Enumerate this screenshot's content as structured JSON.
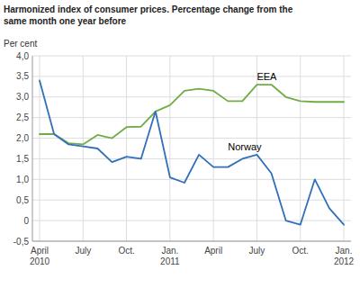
{
  "chart_data": {
    "type": "line",
    "title": "Harmonized index of consumer prices. Percentage change from the\nsame month one year before",
    "ylabel": "Per cent",
    "categories": [
      "April\n2010",
      null,
      null,
      "July",
      null,
      null,
      "Oct.",
      null,
      null,
      "Jan.\n2011",
      null,
      null,
      "April",
      null,
      null,
      "July",
      null,
      null,
      "Oct.",
      null,
      null,
      "Jan.\n2012"
    ],
    "series": [
      {
        "name": "EEA",
        "color": "#70AD47",
        "values": [
          2.1,
          2.1,
          1.88,
          1.85,
          2.08,
          2.0,
          2.27,
          2.28,
          2.65,
          2.8,
          3.15,
          3.2,
          3.15,
          2.9,
          2.9,
          3.3,
          3.3,
          3.0,
          2.9,
          2.88,
          2.88,
          2.88
        ]
      },
      {
        "name": "Norway",
        "color": "#3070B8",
        "values": [
          3.4,
          2.1,
          1.85,
          1.8,
          1.75,
          1.42,
          1.55,
          1.5,
          2.65,
          1.05,
          0.92,
          1.6,
          1.3,
          1.3,
          1.5,
          1.6,
          1.15,
          0.0,
          -0.1,
          1.0,
          0.3,
          -0.1
        ]
      }
    ],
    "ylim": [
      -0.5,
      4.0
    ],
    "yticks": [
      {
        "value": -0.5,
        "label": "-0,5"
      },
      0,
      {
        "value": 0.5,
        "label": "0,5"
      },
      {
        "value": 1.0,
        "label": "1,0"
      },
      {
        "value": 1.5,
        "label": "1,5"
      },
      {
        "value": 2.0,
        "label": "2,0"
      },
      {
        "value": 2.5,
        "label": "2,5"
      },
      {
        "value": 3.0,
        "label": "3,0"
      },
      {
        "value": 3.5,
        "label": "3,5"
      },
      {
        "value": 4.0,
        "label": "4,0"
      }
    ],
    "grid": true
  }
}
